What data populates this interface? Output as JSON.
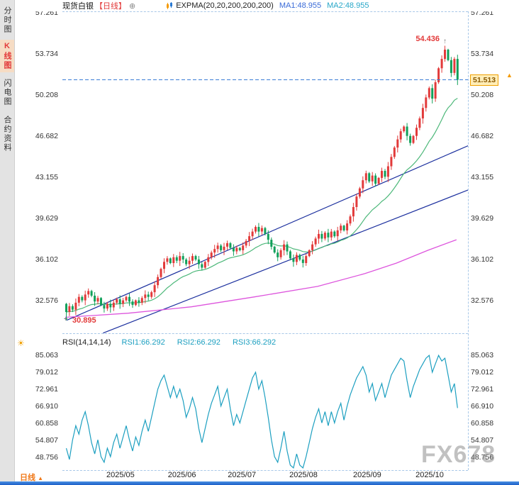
{
  "app": {
    "toolbar": {
      "symbol": "现货白银",
      "period_tag": "【日线】",
      "indicator": "EXPMA(20,20,200,200,200)",
      "ma1_label": "MA1:48.955",
      "ma2_label": "MA2:48.955"
    },
    "sidebar": {
      "items": [
        {
          "label": "分时图",
          "selected": false
        },
        {
          "label": "K线图",
          "selected": true
        },
        {
          "label": "闪电图",
          "selected": false
        },
        {
          "label": "合约资料",
          "selected": false
        }
      ]
    },
    "bottom": {
      "period_label": "日线",
      "arrow": "▲"
    },
    "watermark": "FX678"
  },
  "icons": {
    "add_indicator": "⊕",
    "rsi_settings": "☀",
    "price_alert": "▲",
    "high_point": "↑",
    "low_point": "+",
    "layout_icons": [
      "pane-grid",
      "pane-split",
      "pane-chart",
      "pane-quad"
    ]
  },
  "chart_data": {
    "type": "candlestick",
    "title": "现货白银 日线 (Spot Silver Daily)",
    "price_axis_ticks": [
      "57.261",
      "53.734",
      "50.208",
      "46.682",
      "43.155",
      "39.629",
      "36.102",
      "32.576"
    ],
    "x_labels": [
      "2025/05",
      "2025/06",
      "2025/07",
      "2025/08",
      "2025/09",
      "2025/10"
    ],
    "ylim": [
      29.8,
      57.4
    ],
    "current_price": "51.513",
    "high_marker": {
      "value": 54.436,
      "index": 120,
      "label": "54.436"
    },
    "low_marker": {
      "value": 30.895,
      "index": 0,
      "label": "30.895"
    },
    "first_open": 32.3,
    "closes": [
      31.6,
      32.1,
      31.8,
      32.4,
      32.9,
      32.6,
      33.1,
      33.4,
      33.0,
      32.5,
      32.8,
      32.2,
      31.9,
      32.3,
      32.0,
      32.4,
      32.7,
      32.3,
      32.6,
      32.9,
      32.5,
      32.2,
      32.6,
      32.4,
      32.8,
      33.1,
      32.9,
      33.3,
      33.9,
      34.6,
      35.3,
      35.9,
      36.2,
      35.8,
      36.3,
      36.0,
      36.4,
      36.1,
      35.7,
      36.0,
      36.4,
      36.1,
      35.7,
      35.4,
      35.9,
      36.3,
      36.7,
      37.0,
      37.3,
      36.9,
      37.2,
      37.5,
      37.1,
      36.8,
      37.1,
      36.9,
      37.3,
      37.7,
      38.1,
      38.5,
      38.9,
      38.5,
      38.8,
      38.3,
      37.8,
      37.2,
      36.7,
      36.3,
      36.9,
      37.4,
      36.8,
      36.2,
      35.9,
      36.5,
      36.1,
      35.8,
      36.4,
      36.9,
      37.4,
      37.9,
      38.3,
      37.9,
      38.4,
      38.0,
      38.5,
      38.1,
      38.6,
      39.0,
      38.6,
      39.2,
      39.8,
      40.6,
      41.5,
      42.2,
      42.9,
      43.5,
      42.8,
      43.3,
      42.6,
      43.1,
      43.7,
      43.2,
      44.1,
      44.9,
      45.7,
      46.4,
      47.1,
      47.5,
      46.7,
      46.1,
      46.7,
      47.4,
      48.2,
      49.1,
      50.0,
      50.8,
      49.9,
      51.3,
      52.5,
      53.3,
      54.1,
      53.2,
      52.1,
      53.3,
      51.513
    ],
    "trendlines": [
      {
        "i1": 0.5,
        "p1": 30.9,
        "i2": 128,
        "p2": 45.9
      },
      {
        "i1": 12,
        "p1": 29.8,
        "i2": 128,
        "p2": 42.1
      }
    ],
    "magenta_line": [
      [
        0,
        31.15
      ],
      [
        20,
        31.5
      ],
      [
        40,
        32.05
      ],
      [
        60,
        32.9
      ],
      [
        80,
        33.8
      ],
      [
        95,
        34.9
      ],
      [
        105,
        35.8
      ],
      [
        115,
        36.9
      ],
      [
        124,
        37.8
      ]
    ],
    "colors": {
      "up": "#e23a3a",
      "down": "#11a05a",
      "ma_fast": "#4db87a",
      "ma_slow": "#dd55dd",
      "trend": "#1b2f9e",
      "rsi": "#1c9fc0",
      "dashed": "#3a7bd5"
    },
    "rsi": {
      "label": "RSI(14,14,14)",
      "rsi1_label": "RSI1:66.292",
      "rsi2_label": "RSI2:66.292",
      "rsi3_label": "RSI3:66.292",
      "axis_ticks": [
        "85.063",
        "79.012",
        "72.961",
        "66.910",
        "60.858",
        "54.807",
        "48.756"
      ],
      "values": [
        52,
        48,
        55,
        60,
        57,
        62,
        65,
        60,
        54,
        50,
        55,
        49,
        47,
        52,
        49,
        54,
        57,
        52,
        56,
        60,
        55,
        51,
        56,
        53,
        58,
        62,
        58,
        63,
        68,
        73,
        76,
        78,
        74,
        70,
        74,
        70,
        73,
        69,
        63,
        66,
        70,
        66,
        59,
        54,
        59,
        64,
        68,
        71,
        74,
        67,
        70,
        73,
        66,
        60,
        64,
        61,
        65,
        69,
        73,
        77,
        79,
        73,
        76,
        70,
        63,
        55,
        49,
        47,
        52,
        58,
        51,
        46,
        45,
        50,
        46,
        45,
        49,
        54,
        59,
        63,
        66,
        61,
        65,
        60,
        65,
        61,
        65,
        68,
        62,
        67,
        71,
        74,
        77,
        79,
        81,
        78,
        72,
        75,
        69,
        72,
        75,
        70,
        74,
        78,
        80,
        82,
        84,
        83,
        76,
        70,
        74,
        77,
        80,
        82,
        84,
        85,
        79,
        82,
        85,
        83,
        84,
        78,
        72,
        75,
        66.292
      ]
    }
  }
}
